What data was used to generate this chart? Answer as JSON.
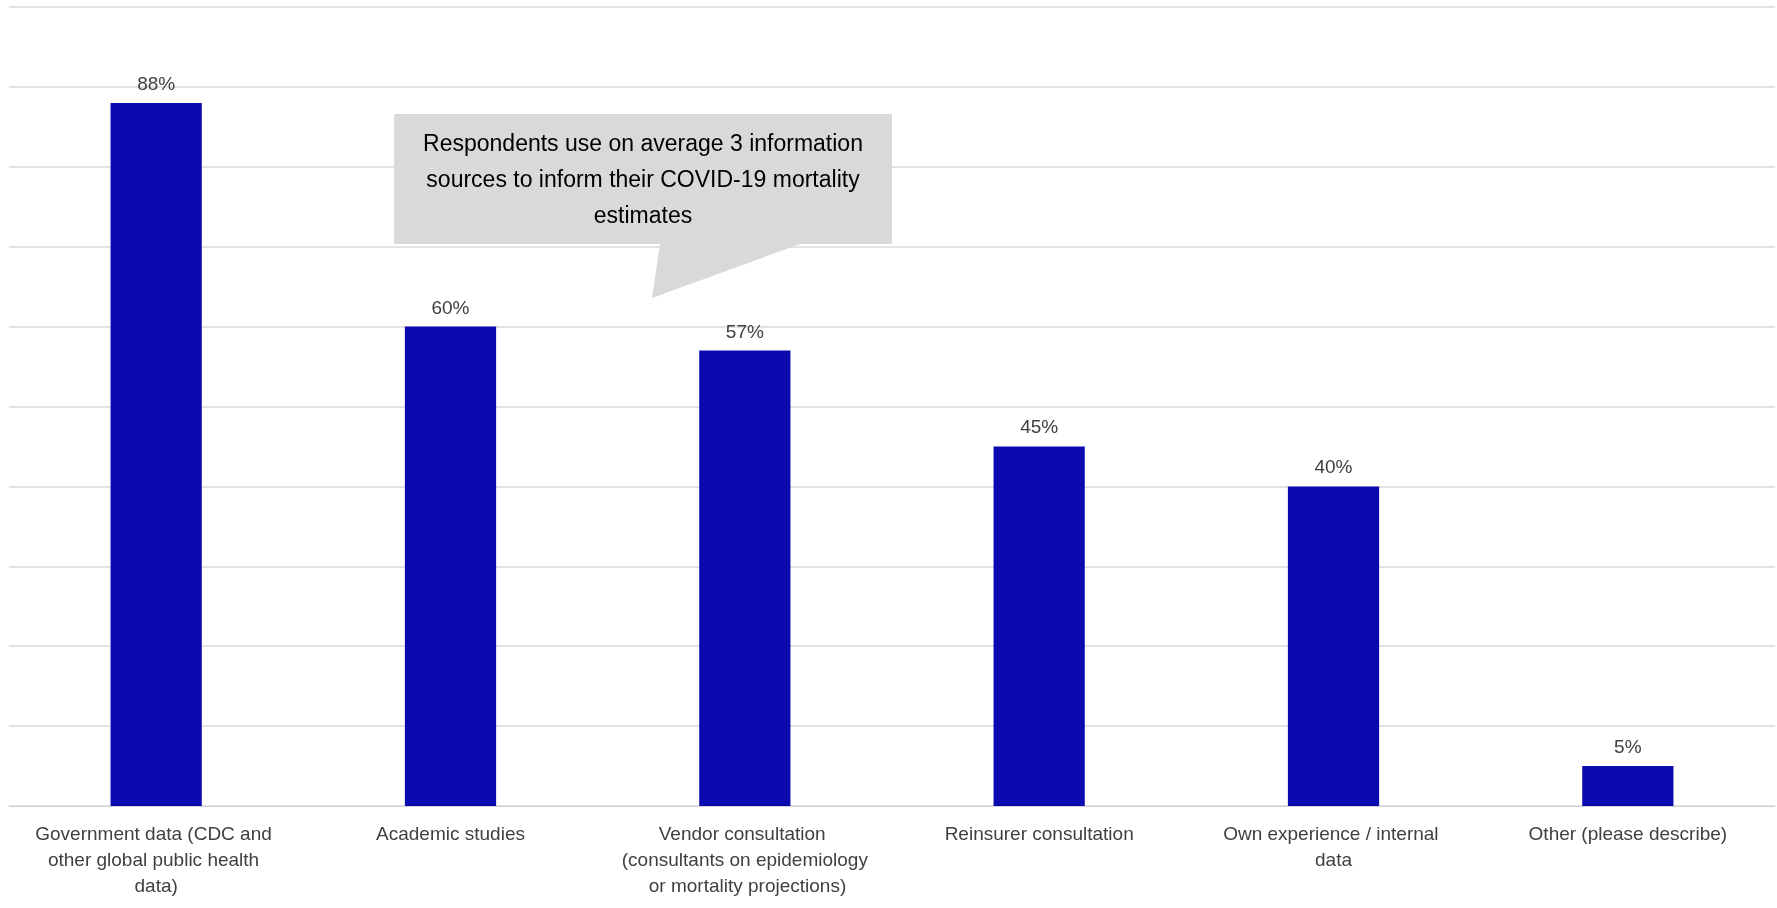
{
  "chart_data": {
    "type": "bar",
    "categories": [
      "Government data (CDC and other global public health data)",
      "Academic studies",
      "Vendor consultation (consultants on epidemiology or mortality projections)",
      "Reinsurer consultation",
      "Own experience / internal data",
      "Other (please describe)"
    ],
    "values": [
      88,
      60,
      57,
      45,
      40,
      5
    ],
    "color": "#0a0aaf",
    "value_labels": [
      "88%",
      "60%",
      "57%",
      "45%",
      "40%",
      "5%"
    ],
    "ylim": [
      0,
      100
    ],
    "yticks": [
      {
        "value": 0,
        "label": null
      },
      {
        "value": 10,
        "label": null
      },
      {
        "value": 20,
        "label": null
      },
      {
        "value": 30,
        "label": null
      },
      {
        "value": 40,
        "label": null
      },
      {
        "value": 50,
        "label": null
      },
      {
        "value": 60,
        "label": null
      },
      {
        "value": 70,
        "label": null
      },
      {
        "value": 80,
        "label": null
      },
      {
        "value": 90,
        "label": null
      },
      {
        "value": 100,
        "label": null
      }
    ],
    "grid": "y",
    "tick_labels": "x",
    "annotations": [
      "Respondents use on average 3 information sources to inform their COVID-19 mortality estimates"
    ]
  }
}
